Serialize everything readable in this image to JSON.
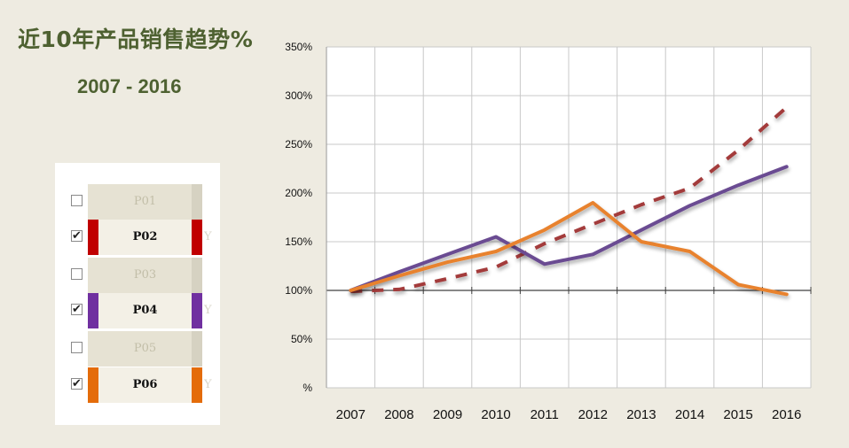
{
  "header": {
    "title": "近10年产品销售趋势%",
    "subtitle": "2007 - 2016"
  },
  "legend_panel": {
    "items": [
      {
        "code": "P01",
        "checked": false,
        "check_mark": "",
        "color": "",
        "y_mark": ""
      },
      {
        "code": "P02",
        "checked": true,
        "check_mark": "✔",
        "color": "#c00000",
        "y_mark": "Y"
      },
      {
        "code": "P03",
        "checked": false,
        "check_mark": "",
        "color": "",
        "y_mark": ""
      },
      {
        "code": "P04",
        "checked": true,
        "check_mark": "✔",
        "color": "#7030a0",
        "y_mark": "Y"
      },
      {
        "code": "P05",
        "checked": false,
        "check_mark": "",
        "color": "",
        "y_mark": ""
      },
      {
        "code": "P06",
        "checked": true,
        "check_mark": "✔",
        "color": "#e46c0a",
        "y_mark": "Y"
      }
    ]
  },
  "chart_data": {
    "type": "line",
    "x": [
      "2007",
      "2008",
      "2009",
      "2010",
      "2011",
      "2012",
      "2013",
      "2014",
      "2015",
      "2016"
    ],
    "y_ticks": [
      "%",
      "50%",
      "100%",
      "150%",
      "200%",
      "250%",
      "300%",
      "350%"
    ],
    "ylim": [
      0,
      350
    ],
    "grid": true,
    "series": [
      {
        "name": "P02",
        "color": "#a33b3b",
        "dash": true,
        "values": [
          99,
          101,
          112,
          124,
          148,
          168,
          188,
          205,
          244,
          288
        ]
      },
      {
        "name": "P04",
        "color": "#6b4b92",
        "dash": false,
        "values": [
          100,
          119,
          137,
          155,
          127,
          137,
          162,
          187,
          208,
          227
        ]
      },
      {
        "name": "P06",
        "color": "#e8822d",
        "dash": false,
        "values": [
          100,
          115,
          129,
          140,
          162,
          190,
          150,
          140,
          106,
          96
        ]
      }
    ]
  }
}
